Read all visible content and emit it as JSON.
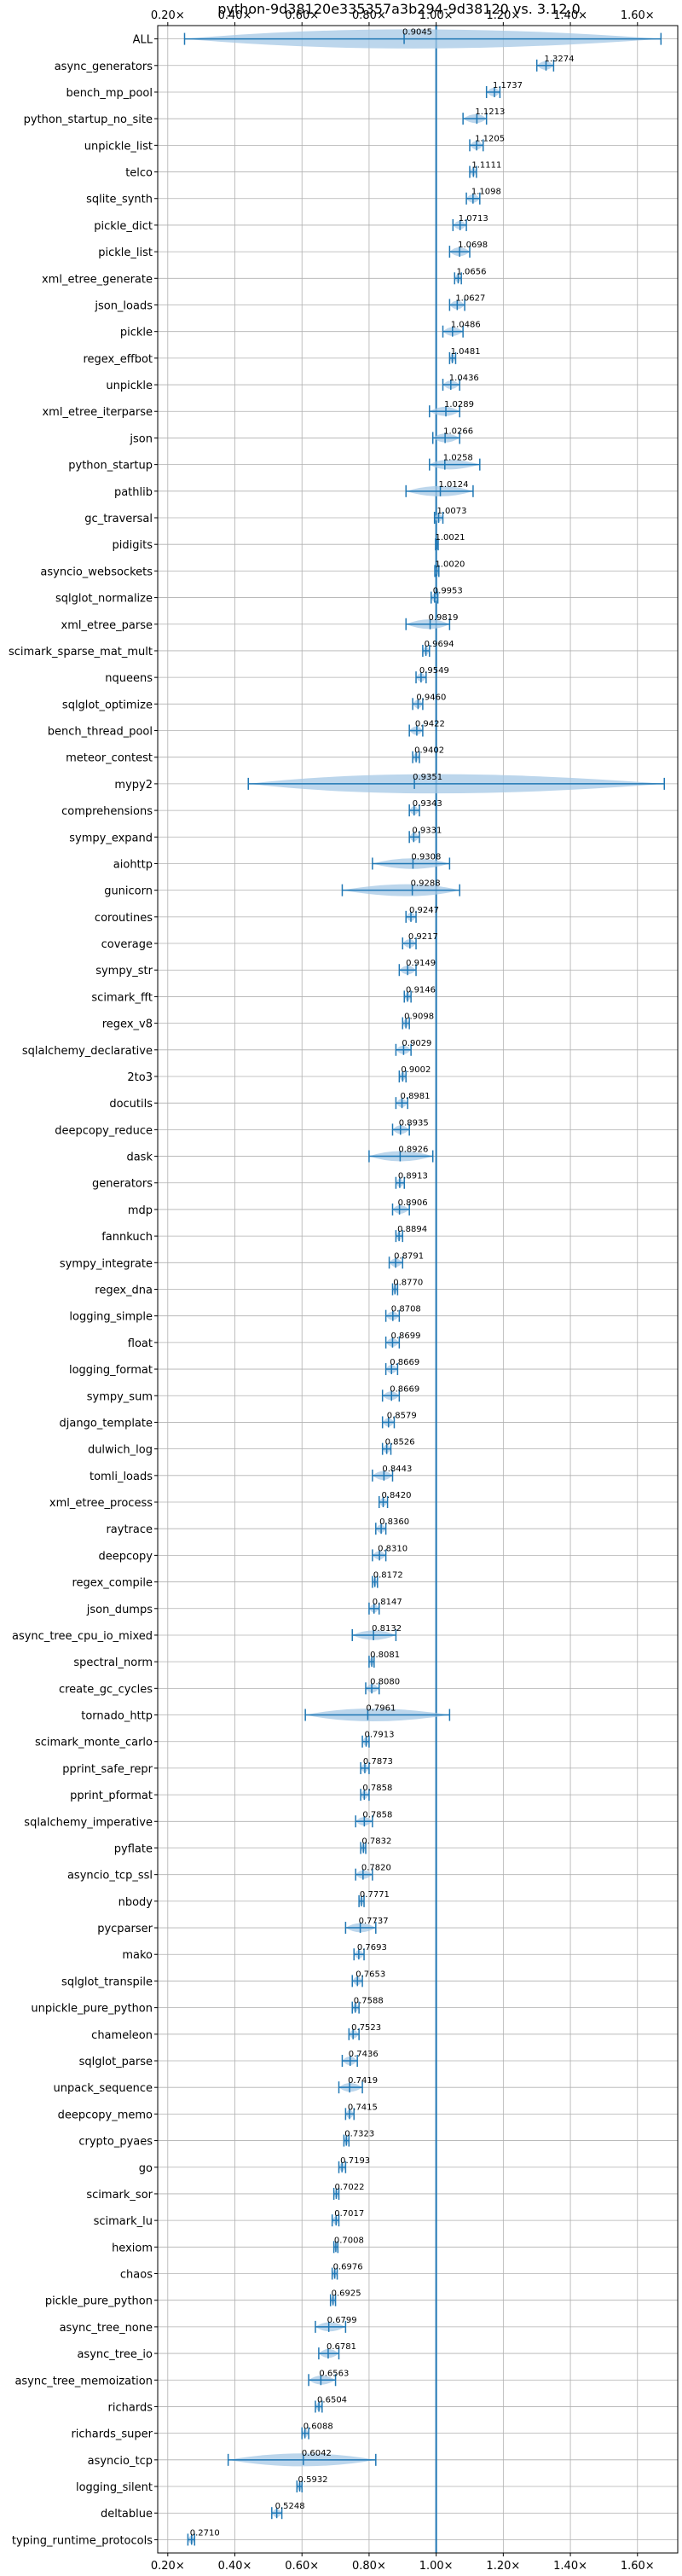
{
  "chart_data": {
    "type": "violin",
    "title": "python-9d38120e335357a3b294-9d38120 vs. 3.12.0",
    "xlabel": "",
    "ylabel": "",
    "xlim": [
      0.17,
      1.72
    ],
    "xticks": [
      0.2,
      0.4,
      0.6,
      0.8,
      1.0,
      1.2,
      1.4,
      1.6
    ],
    "xtick_labels": [
      "0.20×",
      "0.40×",
      "0.60×",
      "0.80×",
      "1.00×",
      "1.20×",
      "1.40×",
      "1.60×"
    ],
    "reference_line": 1.0,
    "grid": true,
    "color": "#1f77b4",
    "violin_color": "#a6c8e6",
    "benchmarks": [
      {
        "name": "ALL",
        "label": "0.9045",
        "value": 0.9045,
        "min": 0.25,
        "max": 1.67
      },
      {
        "name": "async_generators",
        "label": "1.3274",
        "value": 1.3274,
        "min": 1.3,
        "max": 1.35
      },
      {
        "name": "bench_mp_pool",
        "label": "1.1737",
        "value": 1.1737,
        "min": 1.15,
        "max": 1.19
      },
      {
        "name": "python_startup_no_site",
        "label": "1.1213",
        "value": 1.1213,
        "min": 1.08,
        "max": 1.15
      },
      {
        "name": "unpickle_list",
        "label": "1.1205",
        "value": 1.1205,
        "min": 1.1,
        "max": 1.14
      },
      {
        "name": "telco",
        "label": "1.1111",
        "value": 1.1111,
        "min": 1.1,
        "max": 1.12
      },
      {
        "name": "sqlite_synth",
        "label": "1.1098",
        "value": 1.1098,
        "min": 1.09,
        "max": 1.13
      },
      {
        "name": "pickle_dict",
        "label": "1.0713",
        "value": 1.0713,
        "min": 1.05,
        "max": 1.09
      },
      {
        "name": "pickle_list",
        "label": "1.0698",
        "value": 1.0698,
        "min": 1.04,
        "max": 1.1
      },
      {
        "name": "xml_etree_generate",
        "label": "1.0656",
        "value": 1.0656,
        "min": 1.055,
        "max": 1.075
      },
      {
        "name": "json_loads",
        "label": "1.0627",
        "value": 1.0627,
        "min": 1.04,
        "max": 1.085
      },
      {
        "name": "pickle",
        "label": "1.0486",
        "value": 1.0486,
        "min": 1.02,
        "max": 1.08
      },
      {
        "name": "regex_effbot",
        "label": "1.0481",
        "value": 1.0481,
        "min": 1.04,
        "max": 1.058
      },
      {
        "name": "unpickle",
        "label": "1.0436",
        "value": 1.0436,
        "min": 1.02,
        "max": 1.07
      },
      {
        "name": "xml_etree_iterparse",
        "label": "1.0289",
        "value": 1.0289,
        "min": 0.98,
        "max": 1.07
      },
      {
        "name": "json",
        "label": "1.0266",
        "value": 1.0266,
        "min": 0.99,
        "max": 1.07
      },
      {
        "name": "python_startup",
        "label": "1.0258",
        "value": 1.0258,
        "min": 0.98,
        "max": 1.13
      },
      {
        "name": "pathlib",
        "label": "1.0124",
        "value": 1.0124,
        "min": 0.91,
        "max": 1.11
      },
      {
        "name": "gc_traversal",
        "label": "1.0073",
        "value": 1.0073,
        "min": 0.995,
        "max": 1.02
      },
      {
        "name": "pidigits",
        "label": "1.0021",
        "value": 1.0021,
        "min": 0.998,
        "max": 1.006
      },
      {
        "name": "asyncio_websockets",
        "label": "1.0020",
        "value": 1.002,
        "min": 0.996,
        "max": 1.008
      },
      {
        "name": "sqlglot_normalize",
        "label": "0.9953",
        "value": 0.9953,
        "min": 0.985,
        "max": 1.005
      },
      {
        "name": "xml_etree_parse",
        "label": "0.9819",
        "value": 0.9819,
        "min": 0.91,
        "max": 1.04
      },
      {
        "name": "scimark_sparse_mat_mult",
        "label": "0.9694",
        "value": 0.9694,
        "min": 0.96,
        "max": 0.98
      },
      {
        "name": "nqueens",
        "label": "0.9549",
        "value": 0.9549,
        "min": 0.94,
        "max": 0.97
      },
      {
        "name": "sqlglot_optimize",
        "label": "0.9460",
        "value": 0.946,
        "min": 0.93,
        "max": 0.96
      },
      {
        "name": "bench_thread_pool",
        "label": "0.9422",
        "value": 0.9422,
        "min": 0.92,
        "max": 0.96
      },
      {
        "name": "meteor_contest",
        "label": "0.9402",
        "value": 0.9402,
        "min": 0.93,
        "max": 0.95
      },
      {
        "name": "mypy2",
        "label": "0.9351",
        "value": 0.9351,
        "min": 0.44,
        "max": 1.68
      },
      {
        "name": "comprehensions",
        "label": "0.9343",
        "value": 0.9343,
        "min": 0.92,
        "max": 0.95
      },
      {
        "name": "sympy_expand",
        "label": "0.9331",
        "value": 0.9331,
        "min": 0.92,
        "max": 0.95
      },
      {
        "name": "aiohttp",
        "label": "0.9308",
        "value": 0.9308,
        "min": 0.81,
        "max": 1.04
      },
      {
        "name": "gunicorn",
        "label": "0.9288",
        "value": 0.9288,
        "min": 0.72,
        "max": 1.07
      },
      {
        "name": "coroutines",
        "label": "0.9247",
        "value": 0.9247,
        "min": 0.91,
        "max": 0.94
      },
      {
        "name": "coverage",
        "label": "0.9217",
        "value": 0.9217,
        "min": 0.9,
        "max": 0.94
      },
      {
        "name": "sympy_str",
        "label": "0.9149",
        "value": 0.9149,
        "min": 0.89,
        "max": 0.94
      },
      {
        "name": "scimark_fft",
        "label": "0.9146",
        "value": 0.9146,
        "min": 0.905,
        "max": 0.925
      },
      {
        "name": "regex_v8",
        "label": "0.9098",
        "value": 0.9098,
        "min": 0.9,
        "max": 0.92
      },
      {
        "name": "sqlalchemy_declarative",
        "label": "0.9029",
        "value": 0.9029,
        "min": 0.88,
        "max": 0.925
      },
      {
        "name": "2to3",
        "label": "0.9002",
        "value": 0.9002,
        "min": 0.89,
        "max": 0.91
      },
      {
        "name": "docutils",
        "label": "0.8981",
        "value": 0.8981,
        "min": 0.88,
        "max": 0.915
      },
      {
        "name": "deepcopy_reduce",
        "label": "0.8935",
        "value": 0.8935,
        "min": 0.87,
        "max": 0.92
      },
      {
        "name": "dask",
        "label": "0.8926",
        "value": 0.8926,
        "min": 0.8,
        "max": 0.99
      },
      {
        "name": "generators",
        "label": "0.8913",
        "value": 0.8913,
        "min": 0.88,
        "max": 0.905
      },
      {
        "name": "mdp",
        "label": "0.8906",
        "value": 0.8906,
        "min": 0.87,
        "max": 0.92
      },
      {
        "name": "fannkuch",
        "label": "0.8894",
        "value": 0.8894,
        "min": 0.88,
        "max": 0.9
      },
      {
        "name": "sympy_integrate",
        "label": "0.8791",
        "value": 0.8791,
        "min": 0.86,
        "max": 0.9
      },
      {
        "name": "regex_dna",
        "label": "0.8770",
        "value": 0.877,
        "min": 0.87,
        "max": 0.885
      },
      {
        "name": "logging_simple",
        "label": "0.8708",
        "value": 0.8708,
        "min": 0.85,
        "max": 0.89
      },
      {
        "name": "float",
        "label": "0.8699",
        "value": 0.8699,
        "min": 0.85,
        "max": 0.89
      },
      {
        "name": "logging_format",
        "label": "0.8669",
        "value": 0.8669,
        "min": 0.85,
        "max": 0.885
      },
      {
        "name": "sympy_sum",
        "label": "0.8669",
        "value": 0.8669,
        "min": 0.84,
        "max": 0.89
      },
      {
        "name": "django_template",
        "label": "0.8579",
        "value": 0.8579,
        "min": 0.84,
        "max": 0.875
      },
      {
        "name": "dulwich_log",
        "label": "0.8526",
        "value": 0.8526,
        "min": 0.84,
        "max": 0.865
      },
      {
        "name": "tomli_loads",
        "label": "0.8443",
        "value": 0.8443,
        "min": 0.81,
        "max": 0.87
      },
      {
        "name": "xml_etree_process",
        "label": "0.8420",
        "value": 0.842,
        "min": 0.83,
        "max": 0.855
      },
      {
        "name": "raytrace",
        "label": "0.8360",
        "value": 0.836,
        "min": 0.82,
        "max": 0.85
      },
      {
        "name": "deepcopy",
        "label": "0.8310",
        "value": 0.831,
        "min": 0.81,
        "max": 0.85
      },
      {
        "name": "regex_compile",
        "label": "0.8172",
        "value": 0.8172,
        "min": 0.81,
        "max": 0.825
      },
      {
        "name": "json_dumps",
        "label": "0.8147",
        "value": 0.8147,
        "min": 0.8,
        "max": 0.83
      },
      {
        "name": "async_tree_cpu_io_mixed",
        "label": "0.8132",
        "value": 0.8132,
        "min": 0.75,
        "max": 0.88
      },
      {
        "name": "spectral_norm",
        "label": "0.8081",
        "value": 0.8081,
        "min": 0.8,
        "max": 0.815
      },
      {
        "name": "create_gc_cycles",
        "label": "0.8080",
        "value": 0.808,
        "min": 0.79,
        "max": 0.83
      },
      {
        "name": "tornado_http",
        "label": "0.7961",
        "value": 0.7961,
        "min": 0.61,
        "max": 1.04
      },
      {
        "name": "scimark_monte_carlo",
        "label": "0.7913",
        "value": 0.7913,
        "min": 0.78,
        "max": 0.8
      },
      {
        "name": "pprint_safe_repr",
        "label": "0.7873",
        "value": 0.7873,
        "min": 0.775,
        "max": 0.8
      },
      {
        "name": "pprint_pformat",
        "label": "0.7858",
        "value": 0.7858,
        "min": 0.775,
        "max": 0.8
      },
      {
        "name": "sqlalchemy_imperative",
        "label": "0.7858",
        "value": 0.7858,
        "min": 0.76,
        "max": 0.81
      },
      {
        "name": "pyflate",
        "label": "0.7832",
        "value": 0.7832,
        "min": 0.775,
        "max": 0.79
      },
      {
        "name": "asyncio_tcp_ssl",
        "label": "0.7820",
        "value": 0.782,
        "min": 0.76,
        "max": 0.81
      },
      {
        "name": "nbody",
        "label": "0.7771",
        "value": 0.7771,
        "min": 0.77,
        "max": 0.785
      },
      {
        "name": "pycparser",
        "label": "0.7737",
        "value": 0.7737,
        "min": 0.73,
        "max": 0.82
      },
      {
        "name": "mako",
        "label": "0.7693",
        "value": 0.7693,
        "min": 0.755,
        "max": 0.785
      },
      {
        "name": "sqlglot_transpile",
        "label": "0.7653",
        "value": 0.7653,
        "min": 0.75,
        "max": 0.78
      },
      {
        "name": "unpickle_pure_python",
        "label": "0.7588",
        "value": 0.7588,
        "min": 0.75,
        "max": 0.77
      },
      {
        "name": "chameleon",
        "label": "0.7523",
        "value": 0.7523,
        "min": 0.74,
        "max": 0.77
      },
      {
        "name": "sqlglot_parse",
        "label": "0.7436",
        "value": 0.7436,
        "min": 0.72,
        "max": 0.765
      },
      {
        "name": "unpack_sequence",
        "label": "0.7419",
        "value": 0.7419,
        "min": 0.71,
        "max": 0.78
      },
      {
        "name": "deepcopy_memo",
        "label": "0.7415",
        "value": 0.7415,
        "min": 0.73,
        "max": 0.755
      },
      {
        "name": "crypto_pyaes",
        "label": "0.7323",
        "value": 0.7323,
        "min": 0.725,
        "max": 0.74
      },
      {
        "name": "go",
        "label": "0.7193",
        "value": 0.7193,
        "min": 0.71,
        "max": 0.73
      },
      {
        "name": "scimark_sor",
        "label": "0.7022",
        "value": 0.7022,
        "min": 0.695,
        "max": 0.71
      },
      {
        "name": "scimark_lu",
        "label": "0.7017",
        "value": 0.7017,
        "min": 0.69,
        "max": 0.71
      },
      {
        "name": "hexiom",
        "label": "0.7008",
        "value": 0.7008,
        "min": 0.695,
        "max": 0.707
      },
      {
        "name": "chaos",
        "label": "0.6976",
        "value": 0.6976,
        "min": 0.69,
        "max": 0.705
      },
      {
        "name": "pickle_pure_python",
        "label": "0.6925",
        "value": 0.6925,
        "min": 0.685,
        "max": 0.7
      },
      {
        "name": "async_tree_none",
        "label": "0.6799",
        "value": 0.6799,
        "min": 0.64,
        "max": 0.73
      },
      {
        "name": "async_tree_io",
        "label": "0.6781",
        "value": 0.6781,
        "min": 0.65,
        "max": 0.71
      },
      {
        "name": "async_tree_memoization",
        "label": "0.6563",
        "value": 0.6563,
        "min": 0.62,
        "max": 0.7
      },
      {
        "name": "richards",
        "label": "0.6504",
        "value": 0.6504,
        "min": 0.64,
        "max": 0.66
      },
      {
        "name": "richards_super",
        "label": "0.6088",
        "value": 0.6088,
        "min": 0.6,
        "max": 0.62
      },
      {
        "name": "asyncio_tcp",
        "label": "0.6042",
        "value": 0.6042,
        "min": 0.38,
        "max": 0.82
      },
      {
        "name": "logging_silent",
        "label": "0.5932",
        "value": 0.5932,
        "min": 0.585,
        "max": 0.6
      },
      {
        "name": "deltablue",
        "label": "0.5248",
        "value": 0.5248,
        "min": 0.51,
        "max": 0.54
      },
      {
        "name": "typing_runtime_protocols",
        "label": "0.2710",
        "value": 0.271,
        "min": 0.26,
        "max": 0.28
      }
    ]
  }
}
